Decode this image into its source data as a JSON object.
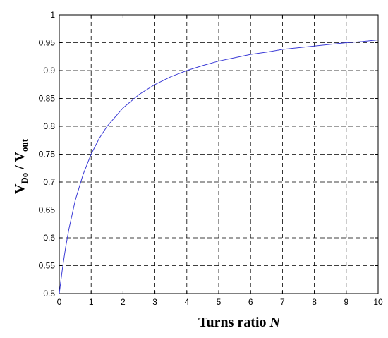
{
  "chart_data": {
    "type": "line",
    "title": "",
    "xlabel": {
      "main": "Turns ratio ",
      "italic": "N"
    },
    "ylabel": {
      "v1": "V",
      "sub1": "Do",
      "sep": " / ",
      "v2": "V",
      "sub2": "out"
    },
    "xlim": [
      0,
      10
    ],
    "ylim": [
      0.5,
      1
    ],
    "x_ticks": [
      0,
      1,
      2,
      3,
      4,
      5,
      6,
      7,
      8,
      9,
      10
    ],
    "x_tick_labels": [
      "0",
      "1",
      "2",
      "3",
      "4",
      "5",
      "6",
      "7",
      "8",
      "9",
      "10"
    ],
    "y_ticks": [
      0.5,
      0.55,
      0.6,
      0.65,
      0.7,
      0.75,
      0.8,
      0.85,
      0.9,
      0.95,
      1
    ],
    "y_tick_labels": [
      "0.5",
      "0.55",
      "0.6",
      "0.65",
      "0.7",
      "0.75",
      "0.8",
      "0.85",
      "0.9",
      "0.95",
      "1"
    ],
    "grid": true,
    "series": [
      {
        "color": "#3b3bd6",
        "x": [
          0,
          0.1,
          0.2,
          0.3,
          0.5,
          0.75,
          1,
          1.25,
          1.5,
          2,
          2.5,
          3,
          3.5,
          4,
          4.5,
          5,
          5.5,
          6,
          6.5,
          7,
          7.5,
          8,
          8.5,
          9,
          9.5,
          10
        ],
        "y": [
          0.5,
          0.545,
          0.583,
          0.615,
          0.667,
          0.714,
          0.75,
          0.778,
          0.8,
          0.833,
          0.857,
          0.875,
          0.889,
          0.9,
          0.909,
          0.917,
          0.923,
          0.929,
          0.933,
          0.938,
          0.941,
          0.944,
          0.947,
          0.95,
          0.952,
          0.955
        ]
      }
    ]
  }
}
